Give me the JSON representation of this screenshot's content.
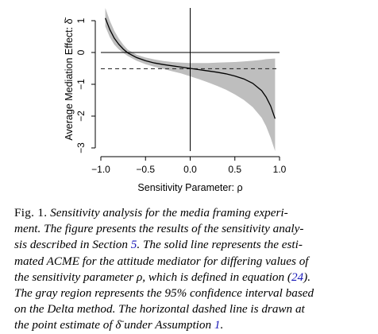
{
  "chart_data": {
    "type": "line",
    "xlabel": "Sensitivity Parameter: ρ",
    "ylabel": "Average Mediation Effect: δ̄",
    "xlim": [
      -1.0,
      1.0
    ],
    "ylim": [
      -3.1,
      1.4
    ],
    "xticks": [
      -1.0,
      -0.5,
      0.0,
      0.5,
      1.0
    ],
    "xtick_labels": [
      "−1.0",
      "−0.5",
      "0.0",
      "0.5",
      "1.0"
    ],
    "yticks": [
      1,
      0,
      -1,
      -2,
      -3
    ],
    "ytick_labels": [
      "1",
      "0",
      "−1",
      "−2",
      "−3"
    ],
    "reference_lines": {
      "vertical_x": 0,
      "horizontal_y": 0,
      "dashed_y": -0.51
    },
    "band_color": "#bebebe",
    "series": [
      {
        "x": [
          -0.95,
          -0.9,
          -0.85,
          -0.8,
          -0.75,
          -0.7,
          -0.6,
          -0.5,
          -0.4,
          -0.3,
          -0.2,
          -0.1,
          0.0,
          0.1,
          0.2,
          0.3,
          0.4,
          0.5,
          0.6,
          0.7,
          0.8,
          0.85,
          0.9,
          0.95
        ],
        "y": [
          1.08,
          0.72,
          0.45,
          0.26,
          0.11,
          -0.01,
          -0.16,
          -0.26,
          -0.33,
          -0.38,
          -0.42,
          -0.46,
          -0.5,
          -0.54,
          -0.58,
          -0.62,
          -0.67,
          -0.74,
          -0.83,
          -0.97,
          -1.2,
          -1.4,
          -1.68,
          -2.08
        ],
        "lower": [
          0.82,
          0.48,
          0.25,
          0.1,
          -0.01,
          -0.11,
          -0.26,
          -0.37,
          -0.45,
          -0.52,
          -0.59,
          -0.66,
          -0.75,
          -0.84,
          -0.94,
          -1.05,
          -1.17,
          -1.32,
          -1.49,
          -1.72,
          -2.05,
          -2.32,
          -2.68,
          -3.1
        ],
        "upper": [
          1.4,
          1.0,
          0.68,
          0.44,
          0.25,
          0.09,
          -0.07,
          -0.16,
          -0.22,
          -0.27,
          -0.3,
          -0.32,
          -0.33,
          -0.33,
          -0.33,
          -0.32,
          -0.31,
          -0.3,
          -0.28,
          -0.26,
          -0.23,
          -0.21,
          -0.2,
          -0.19
        ]
      }
    ]
  },
  "caption": {
    "lines": [
      [
        {
          "t": "Fig. 1.",
          "c": "sc"
        },
        {
          "t": "  Sensitivity analysis for the media framing experi-",
          "c": "it"
        }
      ],
      [
        {
          "t": "ment. The figure presents the results of the sensitivity analy-",
          "c": "it"
        }
      ],
      [
        {
          "t": "sis described in Section ",
          "c": "it"
        },
        {
          "t": "5",
          "c": "ref"
        },
        {
          "t": ". The solid line represents the esti-",
          "c": "it"
        }
      ],
      [
        {
          "t": "mated ACME for the attitude mediator for differing values of",
          "c": "it"
        }
      ],
      [
        {
          "t": "the sensitivity parameter ρ, which is defined in equation (",
          "c": "it"
        },
        {
          "t": "24",
          "c": "ref"
        },
        {
          "t": ").",
          "c": "it"
        }
      ],
      [
        {
          "t": "The gray region represents the 95% confidence interval based",
          "c": "it"
        }
      ],
      [
        {
          "t": "on the Delta method. The horizontal dashed line is drawn at",
          "c": "it"
        }
      ],
      [
        {
          "t": "the point estimate of δ̄ under Assumption ",
          "c": "it"
        },
        {
          "t": "1",
          "c": "ref"
        },
        {
          "t": ".",
          "c": "it"
        }
      ]
    ]
  }
}
